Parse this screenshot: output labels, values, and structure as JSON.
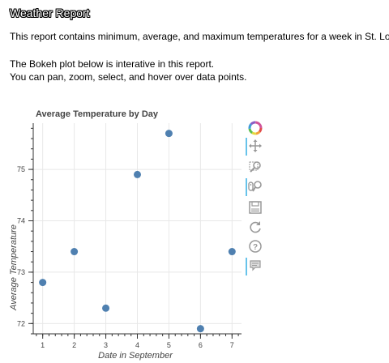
{
  "report": {
    "title": "Weather Report",
    "paragraph_1": "This report contains minimum, average, and maximum temperatures for a week in St. Louis.",
    "paragraph_2": "The Bokeh plot below is interative in this report.",
    "paragraph_3": "You can pan, zoom, select, and hover over data points."
  },
  "toolbar": {
    "tools": [
      "bokeh-logo-icon",
      "pan-icon",
      "box-zoom-icon",
      "wheel-zoom-icon",
      "save-icon",
      "reset-icon",
      "help-icon",
      "hover-icon"
    ]
  },
  "chart_data": {
    "type": "scatter",
    "title": "Average Temperature by Day",
    "xlabel": "Date in September",
    "ylabel": "Average Temperature",
    "x": [
      1,
      2,
      3,
      4,
      5,
      6,
      7
    ],
    "y": [
      72.8,
      73.4,
      72.3,
      74.9,
      75.7,
      71.9,
      73.4
    ],
    "xlim": [
      0.7,
      7.3
    ],
    "ylim": [
      71.8,
      75.9
    ],
    "xticks": [
      1,
      2,
      3,
      4,
      5,
      6,
      7
    ],
    "yticks": [
      72,
      73,
      74,
      75
    ],
    "grid": true,
    "marker_color": "#4f80b0"
  }
}
